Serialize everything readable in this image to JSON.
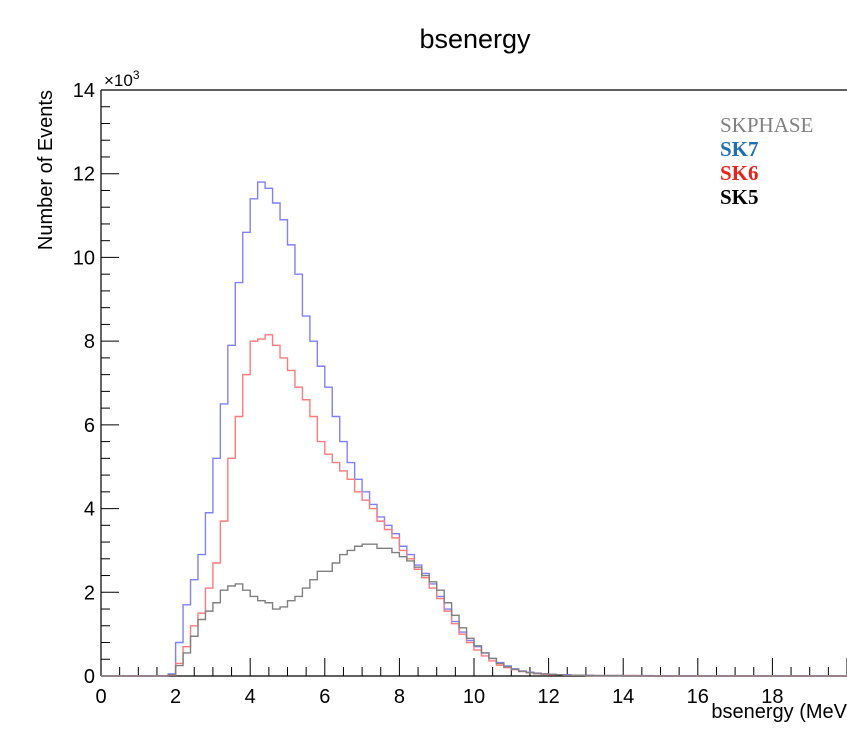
{
  "chart_data": {
    "type": "line",
    "title": "bsenergy",
    "xlabel": "bsenergy (MeV",
    "ylabel": "Number of Events",
    "y_multiplier": "×10",
    "y_multiplier_exp": "3",
    "xlim": [
      0,
      20
    ],
    "ylim": [
      0,
      14
    ],
    "x_ticks": [
      "0",
      "2",
      "4",
      "6",
      "8",
      "10",
      "12",
      "14",
      "16",
      "18"
    ],
    "y_ticks": [
      "0",
      "2",
      "4",
      "6",
      "8",
      "10",
      "12",
      "14"
    ],
    "bin_width": 0.2,
    "x": [
      0.0,
      0.2,
      0.4,
      0.6,
      0.8,
      1.0,
      1.2,
      1.4,
      1.6,
      1.8,
      2.0,
      2.2,
      2.4,
      2.6,
      2.8,
      3.0,
      3.2,
      3.4,
      3.6,
      3.8,
      4.0,
      4.2,
      4.4,
      4.6,
      4.8,
      5.0,
      5.2,
      5.4,
      5.6,
      5.8,
      6.0,
      6.2,
      6.4,
      6.6,
      6.8,
      7.0,
      7.2,
      7.4,
      7.6,
      7.8,
      8.0,
      8.2,
      8.4,
      8.6,
      8.8,
      9.0,
      9.2,
      9.4,
      9.6,
      9.8,
      10.0,
      10.2,
      10.4,
      10.6,
      10.8,
      11.0,
      11.2,
      11.4,
      11.6,
      11.8,
      12.0,
      12.2,
      12.4,
      12.6,
      12.8,
      13.0,
      13.2,
      13.4,
      13.6,
      13.8,
      14.0,
      14.2,
      14.4,
      14.6,
      14.8,
      15.0,
      15.2,
      15.4,
      15.6,
      15.8,
      16.0,
      16.2,
      16.4,
      16.6,
      16.8,
      17.0,
      17.2,
      17.4,
      17.6,
      17.8,
      18.0,
      18.2,
      18.4,
      18.6,
      18.8,
      19.0,
      19.2,
      19.4,
      19.6,
      19.8
    ],
    "series": [
      {
        "name": "SK7",
        "color": "#8080ff",
        "values": [
          0,
          0,
          0,
          0,
          0,
          0,
          0,
          0,
          0,
          0.05,
          0.8,
          1.7,
          2.3,
          2.9,
          3.9,
          5.2,
          6.5,
          7.9,
          9.4,
          10.6,
          11.4,
          11.8,
          11.65,
          11.3,
          10.9,
          10.3,
          9.6,
          8.6,
          8.0,
          7.4,
          6.9,
          6.2,
          5.6,
          5.1,
          4.7,
          4.4,
          4.1,
          3.8,
          3.6,
          3.4,
          3.1,
          2.9,
          2.65,
          2.45,
          2.2,
          1.9,
          1.6,
          1.3,
          1.05,
          0.85,
          0.7,
          0.55,
          0.42,
          0.32,
          0.24,
          0.17,
          0.12,
          0.09,
          0.07,
          0.05,
          0.04,
          0.03,
          0.03,
          0.02,
          0.02,
          0.02,
          0.01,
          0.01,
          0.01,
          0.01,
          0.01,
          0.01,
          0.01,
          0.01,
          0,
          0,
          0,
          0,
          0,
          0,
          0,
          0,
          0,
          0,
          0,
          0,
          0,
          0,
          0,
          0,
          0,
          0,
          0,
          0,
          0,
          0,
          0,
          0,
          0,
          0
        ]
      },
      {
        "name": "SK6",
        "color": "#ff7a7a",
        "values": [
          0,
          0,
          0,
          0,
          0,
          0,
          0,
          0,
          0,
          0.02,
          0.3,
          0.7,
          1.2,
          1.5,
          2.1,
          2.7,
          3.7,
          5.2,
          6.2,
          7.2,
          8.0,
          8.05,
          8.15,
          7.9,
          7.6,
          7.3,
          6.9,
          6.6,
          6.2,
          5.6,
          5.3,
          5.1,
          4.9,
          4.7,
          4.4,
          4.2,
          4.0,
          3.7,
          3.5,
          3.3,
          3.0,
          2.8,
          2.55,
          2.35,
          2.1,
          1.85,
          1.55,
          1.25,
          1.0,
          0.8,
          0.62,
          0.48,
          0.36,
          0.26,
          0.2,
          0.15,
          0.11,
          0.08,
          0.06,
          0.04,
          0.03,
          0.03,
          0.02,
          0.02,
          0.02,
          0.01,
          0.01,
          0.01,
          0.01,
          0.01,
          0.01,
          0.01,
          0,
          0,
          0,
          0,
          0,
          0,
          0,
          0,
          0,
          0,
          0,
          0,
          0,
          0,
          0,
          0,
          0,
          0,
          0,
          0,
          0,
          0,
          0,
          0,
          0,
          0,
          0,
          0
        ]
      },
      {
        "name": "SKPHASE",
        "color": "#808080",
        "values": [
          0,
          0,
          0,
          0,
          0,
          0,
          0,
          0,
          0,
          0.03,
          0.25,
          0.55,
          0.95,
          1.35,
          1.55,
          1.75,
          2.05,
          2.15,
          2.2,
          2.05,
          1.9,
          1.8,
          1.75,
          1.6,
          1.65,
          1.8,
          1.9,
          2.1,
          2.3,
          2.5,
          2.5,
          2.7,
          2.9,
          3.0,
          3.1,
          3.15,
          3.15,
          3.05,
          3.05,
          2.95,
          2.85,
          2.75,
          2.6,
          2.4,
          2.25,
          2.05,
          1.75,
          1.45,
          1.15,
          0.9,
          0.72,
          0.55,
          0.42,
          0.3,
          0.22,
          0.16,
          0.11,
          0.08,
          0.06,
          0.05,
          0.04,
          0.03,
          0.02,
          0.02,
          0.02,
          0.01,
          0.01,
          0.01,
          0.01,
          0.01,
          0,
          0,
          0,
          0,
          0,
          0,
          0,
          0,
          0,
          0,
          0,
          0,
          0,
          0,
          0,
          0,
          0,
          0,
          0,
          0,
          0,
          0,
          0,
          0,
          0,
          0,
          0,
          0,
          0,
          0
        ]
      }
    ],
    "legend": {
      "placement": "top-right",
      "entries": [
        {
          "label": "SKPHASE",
          "color": "#808080"
        },
        {
          "label": "SK7",
          "color": "#1f6fb5"
        },
        {
          "label": "SK6",
          "color": "#e8231b"
        },
        {
          "label": "SK5",
          "color": "#000000"
        }
      ]
    }
  }
}
